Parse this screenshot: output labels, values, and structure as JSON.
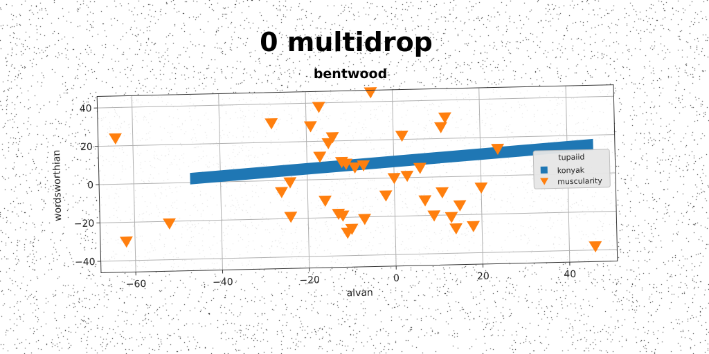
{
  "chart_data": {
    "type": "scatter",
    "title": "0 multidrop",
    "subtitle": "bentwood",
    "xlabel": "alvan",
    "ylabel": "wordsworthian",
    "xlim": [
      -68,
      51
    ],
    "ylim": [
      -46,
      46
    ],
    "xticks": [
      -60,
      -40,
      -20,
      0,
      20,
      40
    ],
    "yticks": [
      -40,
      -20,
      0,
      20,
      40
    ],
    "grid": true,
    "legend": {
      "title": "tupaiid",
      "placement": "right"
    },
    "series": [
      {
        "name": "konyak",
        "kind": "band",
        "color": "#1f77b4",
        "x": [
          -47,
          46
        ],
        "y": [
          2,
          15
        ],
        "thickness": 6
      },
      {
        "name": "muscularity",
        "kind": "scatter",
        "marker": "triangle-down",
        "color": "#ff7f0e",
        "points": [
          [
            -64,
            24
          ],
          [
            -62,
            -30
          ],
          [
            -52,
            -21
          ],
          [
            -28,
            30
          ],
          [
            -26,
            -6
          ],
          [
            -24,
            -1
          ],
          [
            -24,
            -19
          ],
          [
            -19,
            28
          ],
          [
            -17,
            38
          ],
          [
            -17,
            12
          ],
          [
            -16,
            -11
          ],
          [
            -15,
            19
          ],
          [
            -14,
            22
          ],
          [
            -13,
            -18
          ],
          [
            -12,
            9
          ],
          [
            -12,
            -19
          ],
          [
            -11,
            8
          ],
          [
            -11,
            -28
          ],
          [
            -10,
            -26
          ],
          [
            -9,
            6
          ],
          [
            -7,
            -21
          ],
          [
            -7,
            7
          ],
          [
            -5,
            45
          ],
          [
            -2,
            -9
          ],
          [
            0,
            0
          ],
          [
            2,
            22
          ],
          [
            3,
            1
          ],
          [
            6,
            5
          ],
          [
            7,
            -12
          ],
          [
            9,
            -20
          ],
          [
            11,
            26
          ],
          [
            11,
            -8
          ],
          [
            12,
            31
          ],
          [
            13,
            -21
          ],
          [
            14,
            -27
          ],
          [
            15,
            -15
          ],
          [
            18,
            -26
          ],
          [
            20,
            -6
          ],
          [
            24,
            14
          ],
          [
            46,
            -38
          ]
        ]
      }
    ]
  }
}
